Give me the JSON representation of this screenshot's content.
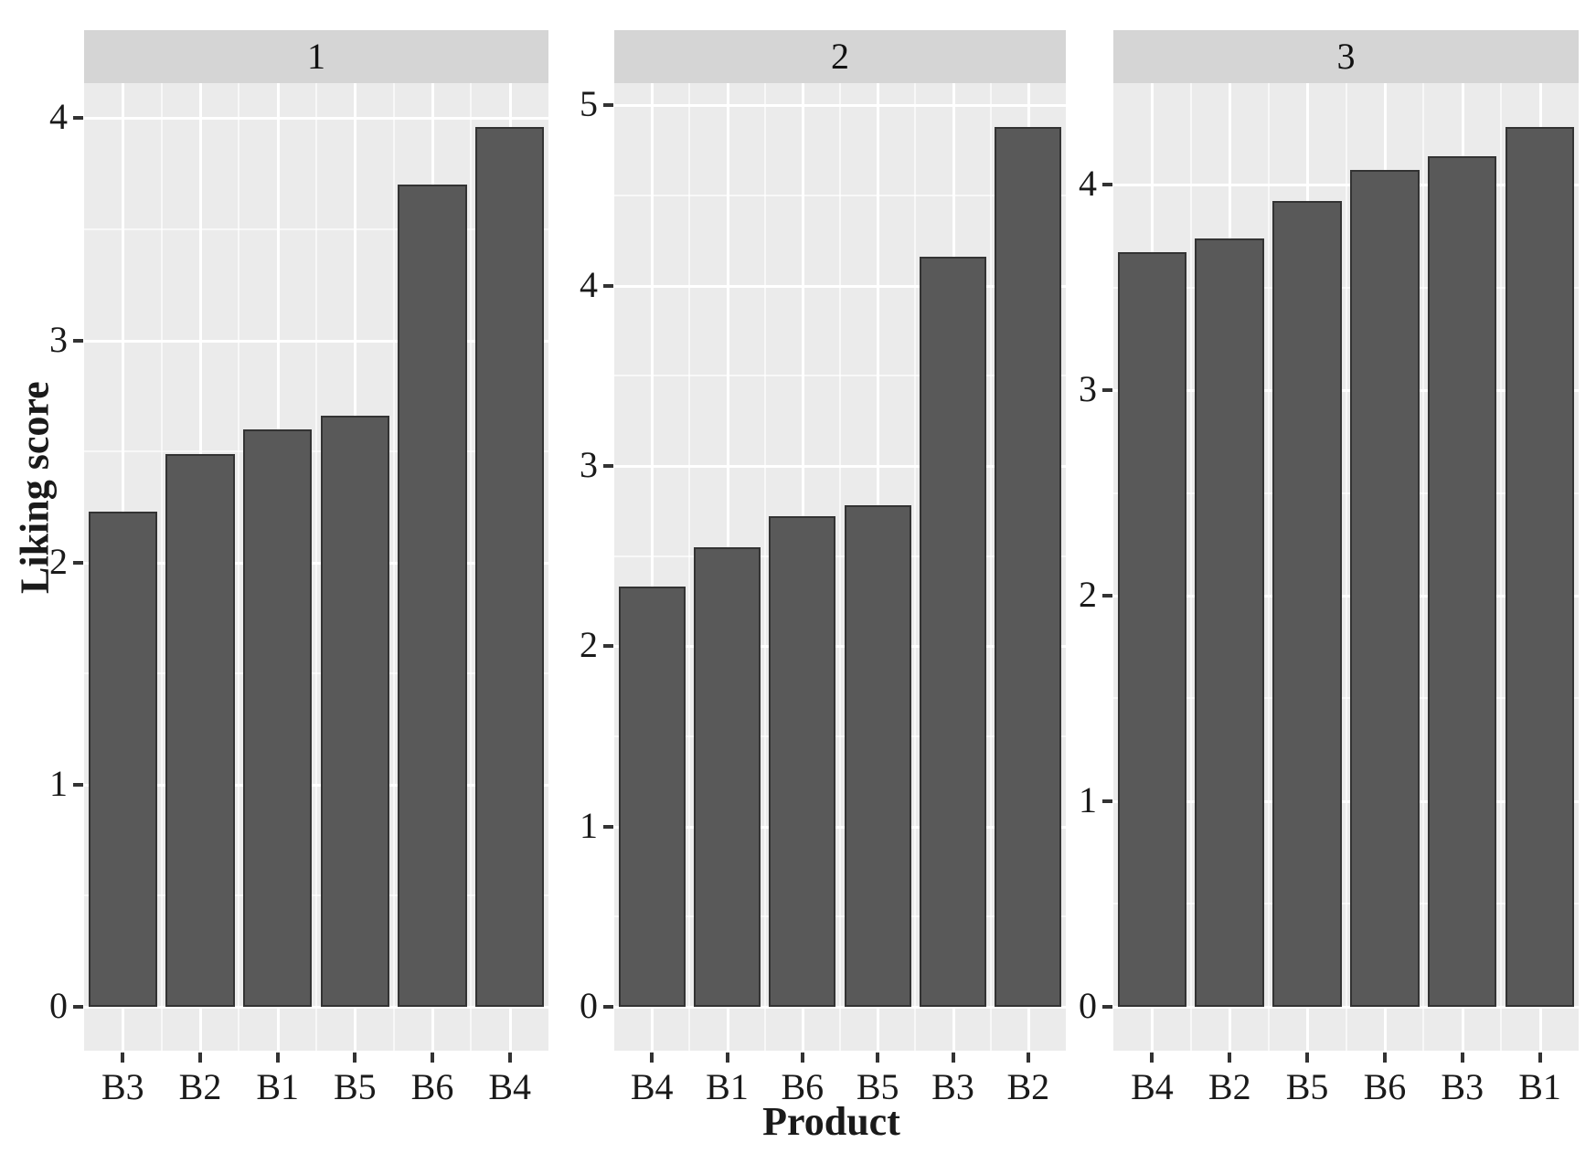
{
  "figure": {
    "y_axis_title": "Liking score",
    "x_axis_title": "Product",
    "colors": {
      "bar_fill": "#595959",
      "bar_border": "#333333",
      "panel_bg": "#ebebeb",
      "strip_bg": "#d5d5d5",
      "grid_major": "#ffffff",
      "grid_minor": "#f5f5f5",
      "text": "#1a1a1a",
      "page_bg": "#ffffff"
    }
  },
  "chart_data": {
    "type": "bar",
    "title": "",
    "xlabel": "Product",
    "ylabel": "Liking score",
    "grid": true,
    "legend": false,
    "facet_variable_values": [
      "1",
      "2",
      "3"
    ],
    "facets": [
      {
        "label": "1",
        "categories": [
          "B3",
          "B2",
          "B1",
          "B5",
          "B6",
          "B4"
        ],
        "values": [
          2.23,
          2.49,
          2.6,
          2.66,
          3.7,
          3.96
        ],
        "y_ticks": [
          0,
          1,
          2,
          3,
          4
        ],
        "ylim": [
          -0.198,
          4.158
        ]
      },
      {
        "label": "2",
        "categories": [
          "B4",
          "B1",
          "B6",
          "B5",
          "B3",
          "B2"
        ],
        "values": [
          2.33,
          2.55,
          2.72,
          2.78,
          4.16,
          4.88
        ],
        "y_ticks": [
          0,
          1,
          2,
          3,
          4,
          5
        ],
        "ylim": [
          -0.244,
          5.124
        ]
      },
      {
        "label": "3",
        "categories": [
          "B4",
          "B2",
          "B5",
          "B6",
          "B3",
          "B1"
        ],
        "values": [
          3.67,
          3.74,
          3.92,
          4.07,
          4.14,
          4.28
        ],
        "y_ticks": [
          0,
          1,
          2,
          3,
          4
        ],
        "ylim": [
          -0.214,
          4.494
        ]
      }
    ]
  }
}
